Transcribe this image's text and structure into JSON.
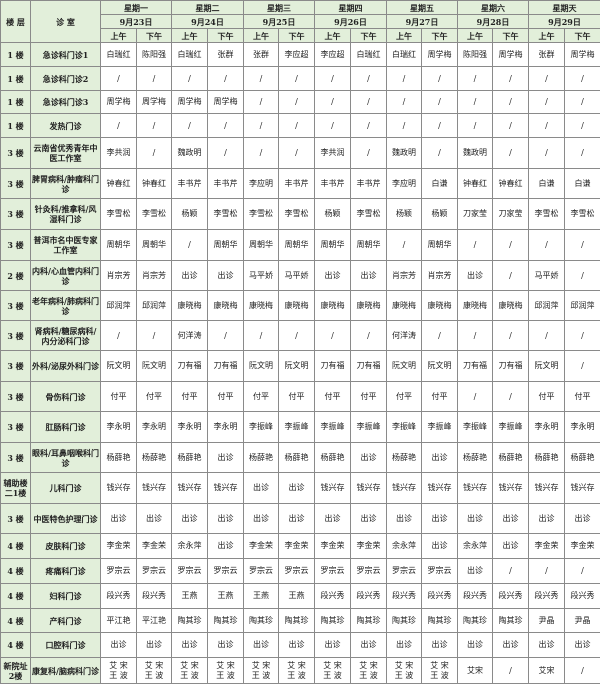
{
  "header": {
    "floor_label": "楼 层",
    "room_label": "诊 室",
    "days": [
      {
        "weekday": "星期一",
        "date": "9月23日"
      },
      {
        "weekday": "星期二",
        "date": "9月24日"
      },
      {
        "weekday": "星期三",
        "date": "9月25日"
      },
      {
        "weekday": "星期四",
        "date": "9月26日"
      },
      {
        "weekday": "星期五",
        "date": "9月27日"
      },
      {
        "weekday": "星期六",
        "date": "9月28日"
      },
      {
        "weekday": "星期天",
        "date": "9月29日"
      }
    ],
    "am": "上午",
    "pm": "下午"
  },
  "colors": {
    "header_bg": "#e2efda",
    "border": "#8a8a8a"
  },
  "rows": [
    {
      "floor": "1 楼",
      "room": "急诊科门诊1",
      "cells": [
        "白瑞红",
        "陈阳强",
        "白瑞红",
        "张群",
        "张群",
        "李应超",
        "李应超",
        "白瑞红",
        "白瑞红",
        "周学梅",
        "陈阳强",
        "周学梅",
        "张群",
        "周学梅"
      ]
    },
    {
      "floor": "1 楼",
      "room": "急诊科门诊2",
      "cells": [
        "/",
        "/",
        "/",
        "/",
        "/",
        "/",
        "/",
        "/",
        "/",
        "/",
        "/",
        "/",
        "/",
        "/"
      ]
    },
    {
      "floor": "1 楼",
      "room": "急诊科门诊3",
      "cells": [
        "周学梅",
        "周学梅",
        "周学梅",
        "周学梅",
        "/",
        "/",
        "/",
        "/",
        "/",
        "/",
        "/",
        "/",
        "/",
        "/"
      ]
    },
    {
      "floor": "1 楼",
      "room": "发热门诊",
      "cells": [
        "/",
        "/",
        "/",
        "/",
        "/",
        "/",
        "/",
        "/",
        "/",
        "/",
        "/",
        "/",
        "/",
        "/"
      ]
    },
    {
      "floor": "3 楼",
      "room": "云南省优秀青年中医工作室",
      "cells": [
        "李共润",
        "/",
        "魏政明",
        "/",
        "/",
        "/",
        "李共润",
        "/",
        "魏政明",
        "/",
        "魏政明",
        "/",
        "/",
        "/"
      ]
    },
    {
      "floor": "3 楼",
      "room": "脾胃病科/肿瘤科门诊",
      "cells": [
        "钟春红",
        "钟春红",
        "丰书芹",
        "丰书芹",
        "李应明",
        "丰书芹",
        "丰书芹",
        "丰书芹",
        "李应明",
        "白谦",
        "钟春红",
        "钟春红",
        "白谦",
        "白谦"
      ]
    },
    {
      "floor": "3 楼",
      "room": "针灸科/推拿科/风湿科门诊",
      "cells": [
        "李雪松",
        "李雪松",
        "杨颖",
        "李雪松",
        "李雪松",
        "李雪松",
        "杨颖",
        "李雪松",
        "杨颖",
        "杨颖",
        "刀家莹",
        "刀家莹",
        "李雪松",
        "李雪松"
      ]
    },
    {
      "floor": "3 楼",
      "room": "普洱市名中医专家工作室",
      "cells": [
        "周朝华",
        "周朝华",
        "/",
        "周朝华",
        "周朝华",
        "周朝华",
        "周朝华",
        "周朝华",
        "/",
        "周朝华",
        "/",
        "/",
        "/",
        "/"
      ]
    },
    {
      "floor": "2 楼",
      "room": "内科/心血管内科门诊",
      "cells": [
        "肖宗芳",
        "肖宗芳",
        "出诊",
        "出诊",
        "马平娇",
        "马平娇",
        "出诊",
        "出诊",
        "肖宗芳",
        "肖宗芳",
        "出诊",
        "/",
        "马平娇",
        "/"
      ]
    },
    {
      "floor": "3 楼",
      "room": "老年病科/肺病科门诊",
      "cells": [
        "邱润萍",
        "邱润萍",
        "康晓梅",
        "康晓梅",
        "康晓梅",
        "康晓梅",
        "康晓梅",
        "康晓梅",
        "康晓梅",
        "康晓梅",
        "康晓梅",
        "康晓梅",
        "邱润萍",
        "邱润萍"
      ]
    },
    {
      "floor": "3 楼",
      "room": "肾病科/糖尿病科/内分泌科门诊",
      "cells": [
        "/",
        "/",
        "何洋涛",
        "/",
        "/",
        "/",
        "/",
        "/",
        "何洋涛",
        "/",
        "/",
        "/",
        "/",
        "/"
      ]
    },
    {
      "floor": "3 楼",
      "room": "外科/泌尿外科门诊",
      "cells": [
        "阮文明",
        "阮文明",
        "刀有福",
        "刀有福",
        "阮文明",
        "阮文明",
        "刀有福",
        "刀有福",
        "阮文明",
        "阮文明",
        "刀有福",
        "刀有福",
        "阮文明",
        "/"
      ]
    },
    {
      "floor": "3 楼",
      "room": "骨伤科门诊",
      "cells": [
        "付平",
        "付平",
        "付平",
        "付平",
        "付平",
        "付平",
        "付平",
        "付平",
        "付平",
        "付平",
        "/",
        "/",
        "付平",
        "付平"
      ]
    },
    {
      "floor": "3 楼",
      "room": "肛肠科门诊",
      "cells": [
        "李永明",
        "李永明",
        "李永明",
        "李永明",
        "李振峰",
        "李振峰",
        "李振峰",
        "李振峰",
        "李振峰",
        "李振峰",
        "李振峰",
        "李振峰",
        "李永明",
        "李永明"
      ]
    },
    {
      "floor": "3 楼",
      "room": "眼科/耳鼻咽喉科门诊",
      "cells": [
        "杨薛艳",
        "杨薛艳",
        "杨薛艳",
        "出诊",
        "杨薛艳",
        "杨薛艳",
        "杨薛艳",
        "出诊",
        "杨薛艳",
        "出诊",
        "杨薛艳",
        "杨薛艳",
        "杨薛艳",
        "杨薛艳"
      ]
    },
    {
      "floor": "辅助楼二1楼",
      "room": "儿科门诊",
      "cells": [
        "钱兴存",
        "钱兴存",
        "钱兴存",
        "钱兴存",
        "出诊",
        "出诊",
        "钱兴存",
        "钱兴存",
        "钱兴存",
        "钱兴存",
        "钱兴存",
        "钱兴存",
        "钱兴存",
        "钱兴存"
      ]
    },
    {
      "floor": "3 楼",
      "room": "中医特色护理门诊",
      "cells": [
        "出诊",
        "出诊",
        "出诊",
        "出诊",
        "出诊",
        "出诊",
        "出诊",
        "出诊",
        "出诊",
        "出诊",
        "出诊",
        "出诊",
        "出诊",
        "出诊"
      ]
    },
    {
      "floor": "4 楼",
      "room": "皮肤科门诊",
      "cells": [
        "李金荣",
        "李金荣",
        "余永萍",
        "出诊",
        "李金荣",
        "李金荣",
        "李金荣",
        "李金荣",
        "余永萍",
        "出诊",
        "余永萍",
        "出诊",
        "李金荣",
        "李金荣"
      ]
    },
    {
      "floor": "4 楼",
      "room": "疼痛科门诊",
      "cells": [
        "罗宗云",
        "罗宗云",
        "罗宗云",
        "罗宗云",
        "罗宗云",
        "罗宗云",
        "罗宗云",
        "罗宗云",
        "罗宗云",
        "罗宗云",
        "出诊",
        "/",
        "/",
        "/"
      ]
    },
    {
      "floor": "4 楼",
      "room": "妇科门诊",
      "cells": [
        "段兴秀",
        "段兴秀",
        "王燕",
        "王燕",
        "王燕",
        "王燕",
        "段兴秀",
        "段兴秀",
        "段兴秀",
        "段兴秀",
        "段兴秀",
        "段兴秀",
        "段兴秀",
        "段兴秀"
      ]
    },
    {
      "floor": "4 楼",
      "room": "产科门诊",
      "cells": [
        "平江艳",
        "平江艳",
        "陶其珍",
        "陶其珍",
        "陶其珍",
        "陶其珍",
        "陶其珍",
        "陶其珍",
        "陶其珍",
        "陶其珍",
        "陶其珍",
        "陶其珍",
        "尹晶",
        "尹晶"
      ]
    },
    {
      "floor": "4 楼",
      "room": "口腔科门诊",
      "cells": [
        "出诊",
        "出诊",
        "出诊",
        "出诊",
        "出诊",
        "出诊",
        "出诊",
        "出诊",
        "出诊",
        "出诊",
        "出诊",
        "出诊",
        "出诊",
        "出诊"
      ]
    },
    {
      "floor": "新院址2楼",
      "room": "康复科/脑病科门诊",
      "cells": [
        "艾 宋\n王 波",
        "艾 宋\n王 波",
        "艾 宋\n王 波",
        "艾 宋\n王 波",
        "艾 宋\n王 波",
        "艾 宋\n王 波",
        "艾 宋\n王 波",
        "艾 宋\n王 波",
        "艾 宋\n王 波",
        "艾 宋\n王 波",
        "艾宋",
        "/",
        "艾宋",
        "/"
      ]
    }
  ]
}
